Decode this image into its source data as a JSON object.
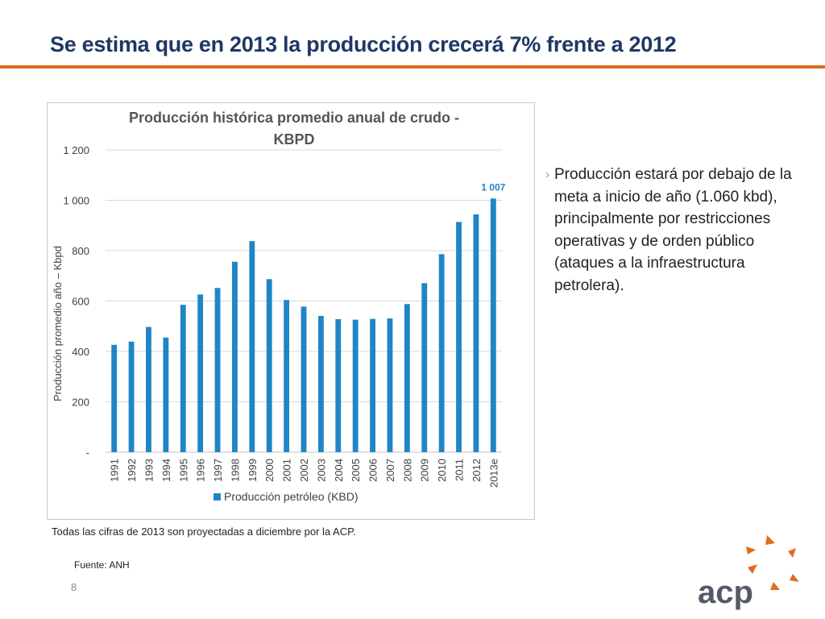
{
  "slide": {
    "title": "Se estima que en 2013 la producción crecerá 7% frente a 2012",
    "bullet": "Producción estará por debajo de la meta a inicio de año (1.060 kbd), principalmente por restricciones operativas y de orden público (ataques a la infraestructura petrolera).",
    "bullet_marker": "›",
    "note": "Todas las cifras de 2013 son proyectadas a diciembre por la ACP.",
    "source": "Fuente: ANH",
    "page_number": "8",
    "logo_text": "acp",
    "logo_icon": "orange-star-burst-icon"
  },
  "colors": {
    "accent_orange": "#e36c1e",
    "title_navy": "#1f3864",
    "bar_blue": "#1f86c6",
    "label_blue": "#1f86c6"
  },
  "chart_data": {
    "type": "bar",
    "title": "Producción histórica promedio anual de crudo - KBPD",
    "title_lines": [
      "Producción histórica promedio anual de crudo -",
      "KBPD"
    ],
    "xlabel": "",
    "ylabel": "Producción promedio año – Kbpd",
    "ylim": [
      0,
      1200
    ],
    "yticks": [
      0,
      200,
      400,
      600,
      800,
      1000,
      1200
    ],
    "ytick_labels": [
      "-",
      "200",
      "400",
      "600",
      "800",
      "1 000",
      "1 200"
    ],
    "grid": true,
    "legend_position": "bottom",
    "categories": [
      "1991",
      "1992",
      "1993",
      "1994",
      "1995",
      "1996",
      "1997",
      "1998",
      "1999",
      "2000",
      "2001",
      "2002",
      "2003",
      "2004",
      "2005",
      "2006",
      "2007",
      "2008",
      "2009",
      "2010",
      "2011",
      "2012",
      "2013e"
    ],
    "series": [
      {
        "name": "Producción petróleo (KBD)",
        "color": "#1f86c6",
        "values": [
          426,
          439,
          497,
          455,
          585,
          626,
          652,
          756,
          838,
          687,
          604,
          578,
          541,
          528,
          526,
          529,
          531,
          588,
          671,
          786,
          914,
          944,
          1007
        ]
      }
    ],
    "data_labels": [
      {
        "category": "2013e",
        "text": "1 007"
      }
    ]
  }
}
